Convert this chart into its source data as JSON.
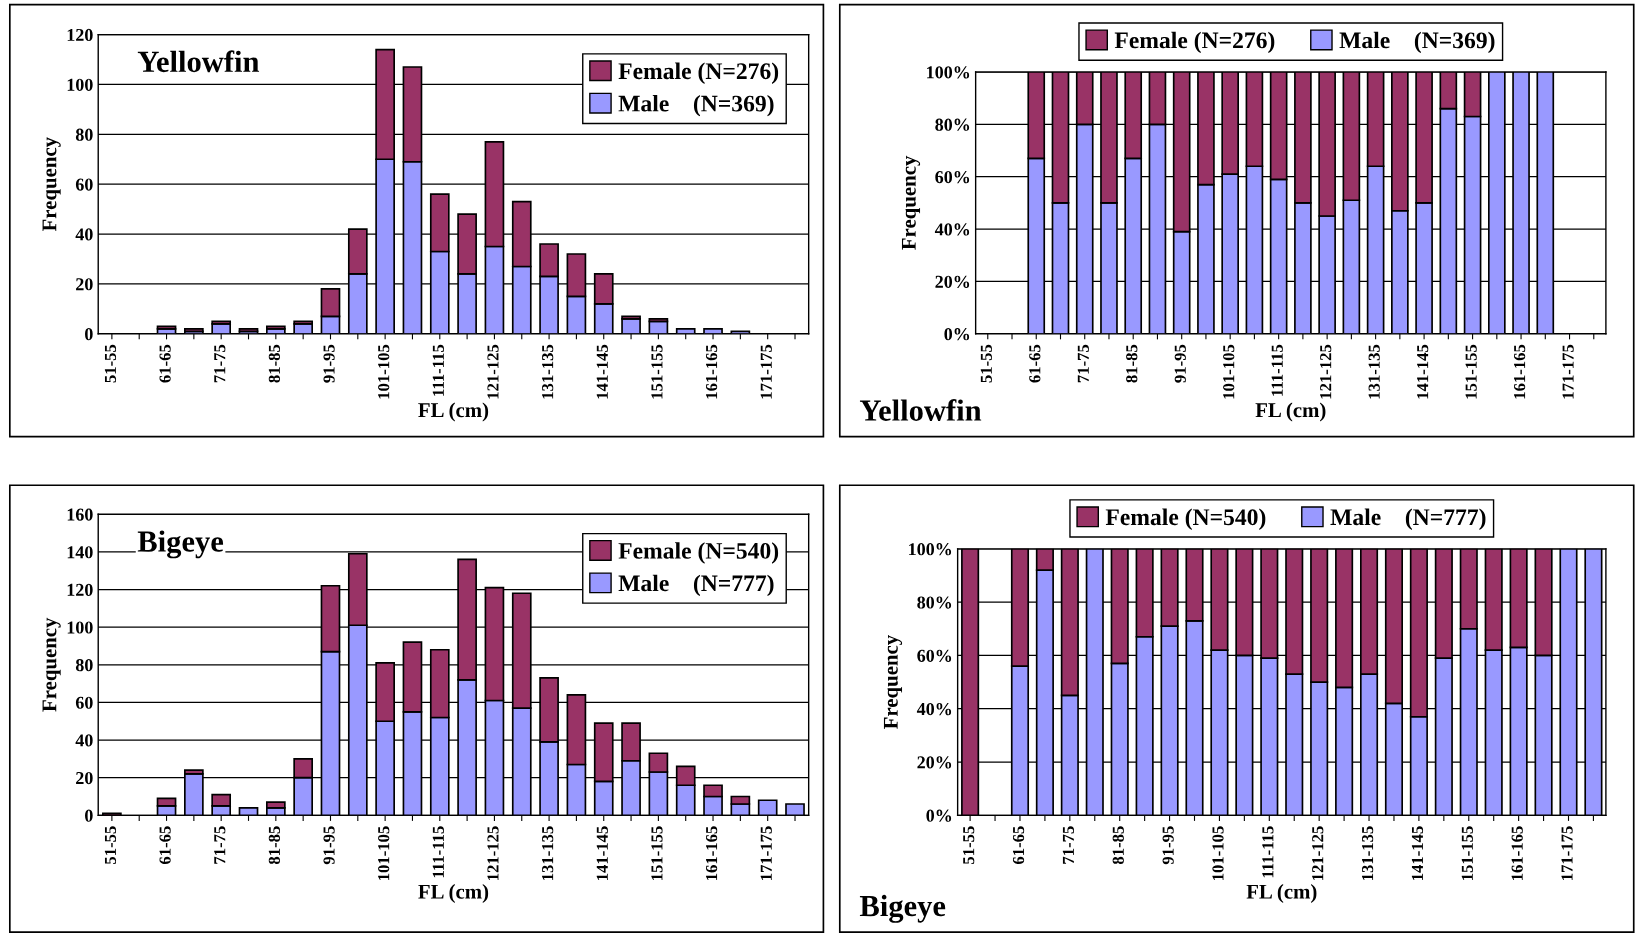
{
  "chart_data": [
    {
      "type": "bar",
      "stacked": true,
      "title": "Yellowfin",
      "xlabel": "FL (cm)",
      "ylabel": "Frequency",
      "categories": [
        "51-55",
        null,
        "61-65",
        null,
        "71-75",
        null,
        "81-85",
        null,
        "91-95",
        null,
        "101-105",
        null,
        "111-115",
        null,
        "121-125",
        null,
        "131-135",
        null,
        "141-145",
        null,
        "151-155",
        null,
        "161-165",
        null,
        "171-175",
        null
      ],
      "series": [
        {
          "name": "Male    (N=369)",
          "color": "#9999ff",
          "values": [
            0,
            0,
            2,
            1,
            4,
            1,
            2,
            4,
            7,
            24,
            70,
            69,
            33,
            24,
            35,
            27,
            23,
            15,
            12,
            6,
            5,
            2,
            2,
            1,
            0,
            0
          ]
        },
        {
          "name": "Female (N=276)",
          "color": "#993366",
          "values": [
            0,
            0,
            1,
            1,
            1,
            1,
            1,
            1,
            11,
            18,
            44,
            38,
            23,
            24,
            42,
            26,
            13,
            17,
            12,
            1,
            1,
            0,
            0,
            0,
            0,
            0
          ]
        }
      ],
      "ylim": [
        0,
        120
      ],
      "yticks": [
        0,
        20,
        40,
        60,
        80,
        100,
        120
      ],
      "grid": "y",
      "legend": "top right"
    },
    {
      "type": "bar",
      "stacked": true,
      "title": "Yellowfin",
      "xlabel": "FL (cm)",
      "ylabel": "Frequency",
      "categories": [
        "51-55",
        null,
        "61-65",
        null,
        "71-75",
        null,
        "81-85",
        null,
        "91-95",
        null,
        "101-105",
        null,
        "111-115",
        null,
        "121-125",
        null,
        "131-135",
        null,
        "141-145",
        null,
        "151-155",
        null,
        "161-165",
        null,
        "171-175",
        null
      ],
      "series": [
        {
          "name": "Male    (N=369)",
          "color": "#9999ff",
          "values": [
            null,
            null,
            67,
            50,
            80,
            50,
            67,
            80,
            39,
            57,
            61,
            64,
            59,
            50,
            45,
            51,
            64,
            47,
            50,
            86,
            83,
            100,
            100,
            100,
            null,
            null
          ]
        },
        {
          "name": "Female (N=276)",
          "color": "#993366",
          "values": [
            null,
            null,
            33,
            50,
            20,
            50,
            33,
            20,
            61,
            43,
            39,
            36,
            41,
            50,
            55,
            49,
            36,
            53,
            50,
            14,
            17,
            0,
            0,
            0,
            null,
            null
          ]
        }
      ],
      "ylim": [
        0,
        100
      ],
      "yticks": [
        {
          "value": 0,
          "label": "0%"
        },
        {
          "value": 20,
          "label": "20%"
        },
        {
          "value": 40,
          "label": "40%"
        },
        {
          "value": 60,
          "label": "60%"
        },
        {
          "value": 80,
          "label": "80%"
        },
        {
          "value": 100,
          "label": "100%"
        }
      ],
      "grid": "y",
      "legend": "top"
    },
    {
      "type": "bar",
      "stacked": true,
      "title": "Bigeye",
      "xlabel": "FL (cm)",
      "ylabel": "Frequency",
      "categories": [
        "51-55",
        null,
        "61-65",
        null,
        "71-75",
        null,
        "81-85",
        null,
        "91-95",
        null,
        "101-105",
        null,
        "111-115",
        null,
        "121-125",
        null,
        "131-135",
        null,
        "141-145",
        null,
        "151-155",
        null,
        "161-165",
        null,
        "171-175",
        null
      ],
      "series": [
        {
          "name": "Male    (N=777)",
          "color": "#9999ff",
          "values": [
            0,
            0,
            5,
            22,
            5,
            4,
            4,
            20,
            87,
            101,
            50,
            55,
            52,
            72,
            61,
            57,
            39,
            27,
            18,
            29,
            23,
            16,
            10,
            6,
            8,
            6
          ]
        },
        {
          "name": "Female (N=540)",
          "color": "#993366",
          "values": [
            1,
            0,
            4,
            2,
            6,
            0,
            3,
            10,
            35,
            38,
            31,
            37,
            36,
            64,
            60,
            61,
            34,
            37,
            31,
            20,
            10,
            10,
            6,
            4,
            0,
            0
          ]
        }
      ],
      "ylim": [
        0,
        160
      ],
      "yticks": [
        0,
        20,
        40,
        60,
        80,
        100,
        120,
        140,
        160
      ],
      "grid": "y",
      "legend": "top right"
    },
    {
      "type": "bar",
      "stacked": true,
      "title": "Bigeye",
      "xlabel": "FL (cm)",
      "ylabel": "Frequency",
      "categories": [
        "51-55",
        null,
        "61-65",
        null,
        "71-75",
        null,
        "81-85",
        null,
        "91-95",
        null,
        "101-105",
        null,
        "111-115",
        null,
        "121-125",
        null,
        "131-135",
        null,
        "141-145",
        null,
        "151-155",
        null,
        "161-165",
        null,
        "171-175",
        null
      ],
      "series": [
        {
          "name": "Male    (N=777)",
          "color": "#9999ff",
          "values": [
            0,
            null,
            56,
            92,
            45,
            100,
            57,
            67,
            71,
            73,
            62,
            60,
            59,
            53,
            50,
            48,
            53,
            42,
            37,
            59,
            70,
            62,
            63,
            60,
            100,
            100
          ]
        },
        {
          "name": "Female (N=540)",
          "color": "#993366",
          "values": [
            100,
            null,
            44,
            8,
            55,
            0,
            43,
            33,
            29,
            27,
            38,
            40,
            41,
            47,
            50,
            52,
            47,
            58,
            63,
            41,
            30,
            38,
            37,
            40,
            0,
            0
          ]
        }
      ],
      "ylim": [
        0,
        100
      ],
      "yticks": [
        {
          "value": 0,
          "label": "0%"
        },
        {
          "value": 20,
          "label": "20%"
        },
        {
          "value": 40,
          "label": "40%"
        },
        {
          "value": 60,
          "label": "60%"
        },
        {
          "value": 80,
          "label": "80%"
        },
        {
          "value": 100,
          "label": "100%"
        }
      ],
      "grid": "y",
      "legend": "top"
    }
  ]
}
